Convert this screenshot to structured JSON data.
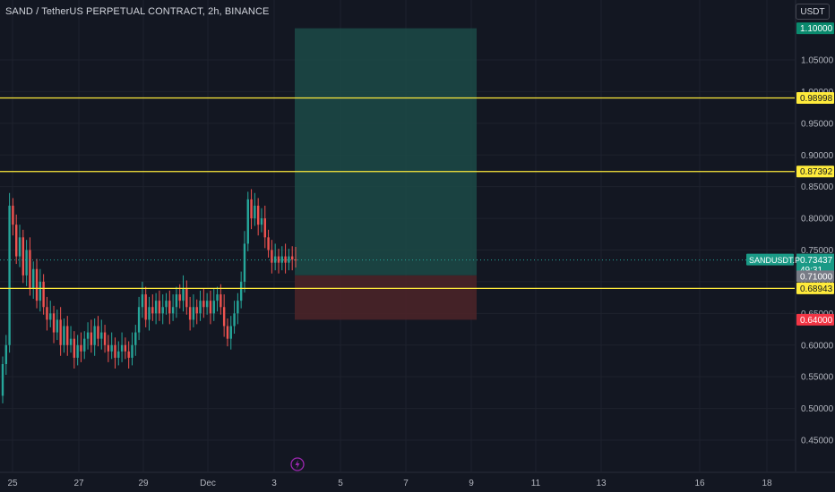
{
  "header": {
    "title": "SAND / TetherUS PERPETUAL CONTRACT, 2h, BINANCE",
    "currency_button": "USDT"
  },
  "colors": {
    "background": "#131722",
    "grid": "#1e222d",
    "axis_text": "#b2b5be",
    "candle_up": "#26a69a",
    "candle_down": "#ef5350",
    "horizontal_line": "#ffeb3b",
    "profit_zone": "#1c4a47",
    "loss_zone": "#4a2428",
    "target_label": "#0a8a6e",
    "stop_label": "#f23645",
    "symbol_label": "#1a9a86",
    "entry_label": "#787b86"
  },
  "icons": {
    "timeline_event": "bolt-icon"
  },
  "chart_data": {
    "type": "candlestick",
    "title": "SAND / TetherUS PERPETUAL CONTRACT, 2h, BINANCE",
    "ylim": [
      0.41,
      1.115
    ],
    "y_ticks": [
      "0.45000",
      "0.50000",
      "0.55000",
      "0.60000",
      "0.65000",
      "0.70000",
      "0.75000",
      "0.80000",
      "0.85000",
      "0.90000",
      "0.95000",
      "1.00000",
      "1.05000"
    ],
    "x_ticks": [
      "25",
      "27",
      "29",
      "Dec",
      "3",
      "5",
      "7",
      "9",
      "11",
      "13",
      "16",
      "18"
    ],
    "grid": true,
    "horizontal_lines": [
      {
        "value": 0.98998,
        "label": "0.98998"
      },
      {
        "value": 0.87392,
        "label": "0.87392"
      },
      {
        "value": 0.68943,
        "label": "0.68943"
      }
    ],
    "position": {
      "type": "long",
      "entry": 0.71,
      "entry_label": "0.71000",
      "target": 1.1,
      "target_label": "1.10000",
      "stop": 0.64,
      "stop_label": "0.64000"
    },
    "last_price": {
      "symbol": "SANDUSDT.P",
      "price": 0.73437,
      "price_label": "0.73437",
      "countdown": "49:31"
    },
    "candles_close": [
      0.57,
      0.6,
      0.82,
      0.79,
      0.74,
      0.77,
      0.71,
      0.75,
      0.69,
      0.72,
      0.67,
      0.7,
      0.66,
      0.64,
      0.65,
      0.62,
      0.64,
      0.6,
      0.63,
      0.6,
      0.61,
      0.58,
      0.6,
      0.59,
      0.61,
      0.62,
      0.6,
      0.63,
      0.61,
      0.62,
      0.6,
      0.59,
      0.6,
      0.58,
      0.59,
      0.6,
      0.59,
      0.58,
      0.6,
      0.62,
      0.66,
      0.68,
      0.64,
      0.66,
      0.65,
      0.67,
      0.65,
      0.66,
      0.67,
      0.65,
      0.66,
      0.68,
      0.67,
      0.69,
      0.66,
      0.64,
      0.66,
      0.65,
      0.67,
      0.66,
      0.67,
      0.65,
      0.67,
      0.68,
      0.66,
      0.63,
      0.61,
      0.63,
      0.65,
      0.67,
      0.7,
      0.76,
      0.83,
      0.8,
      0.82,
      0.79,
      0.8,
      0.77,
      0.75,
      0.73,
      0.74,
      0.73,
      0.74,
      0.73,
      0.74,
      0.735,
      0.73437
    ]
  }
}
